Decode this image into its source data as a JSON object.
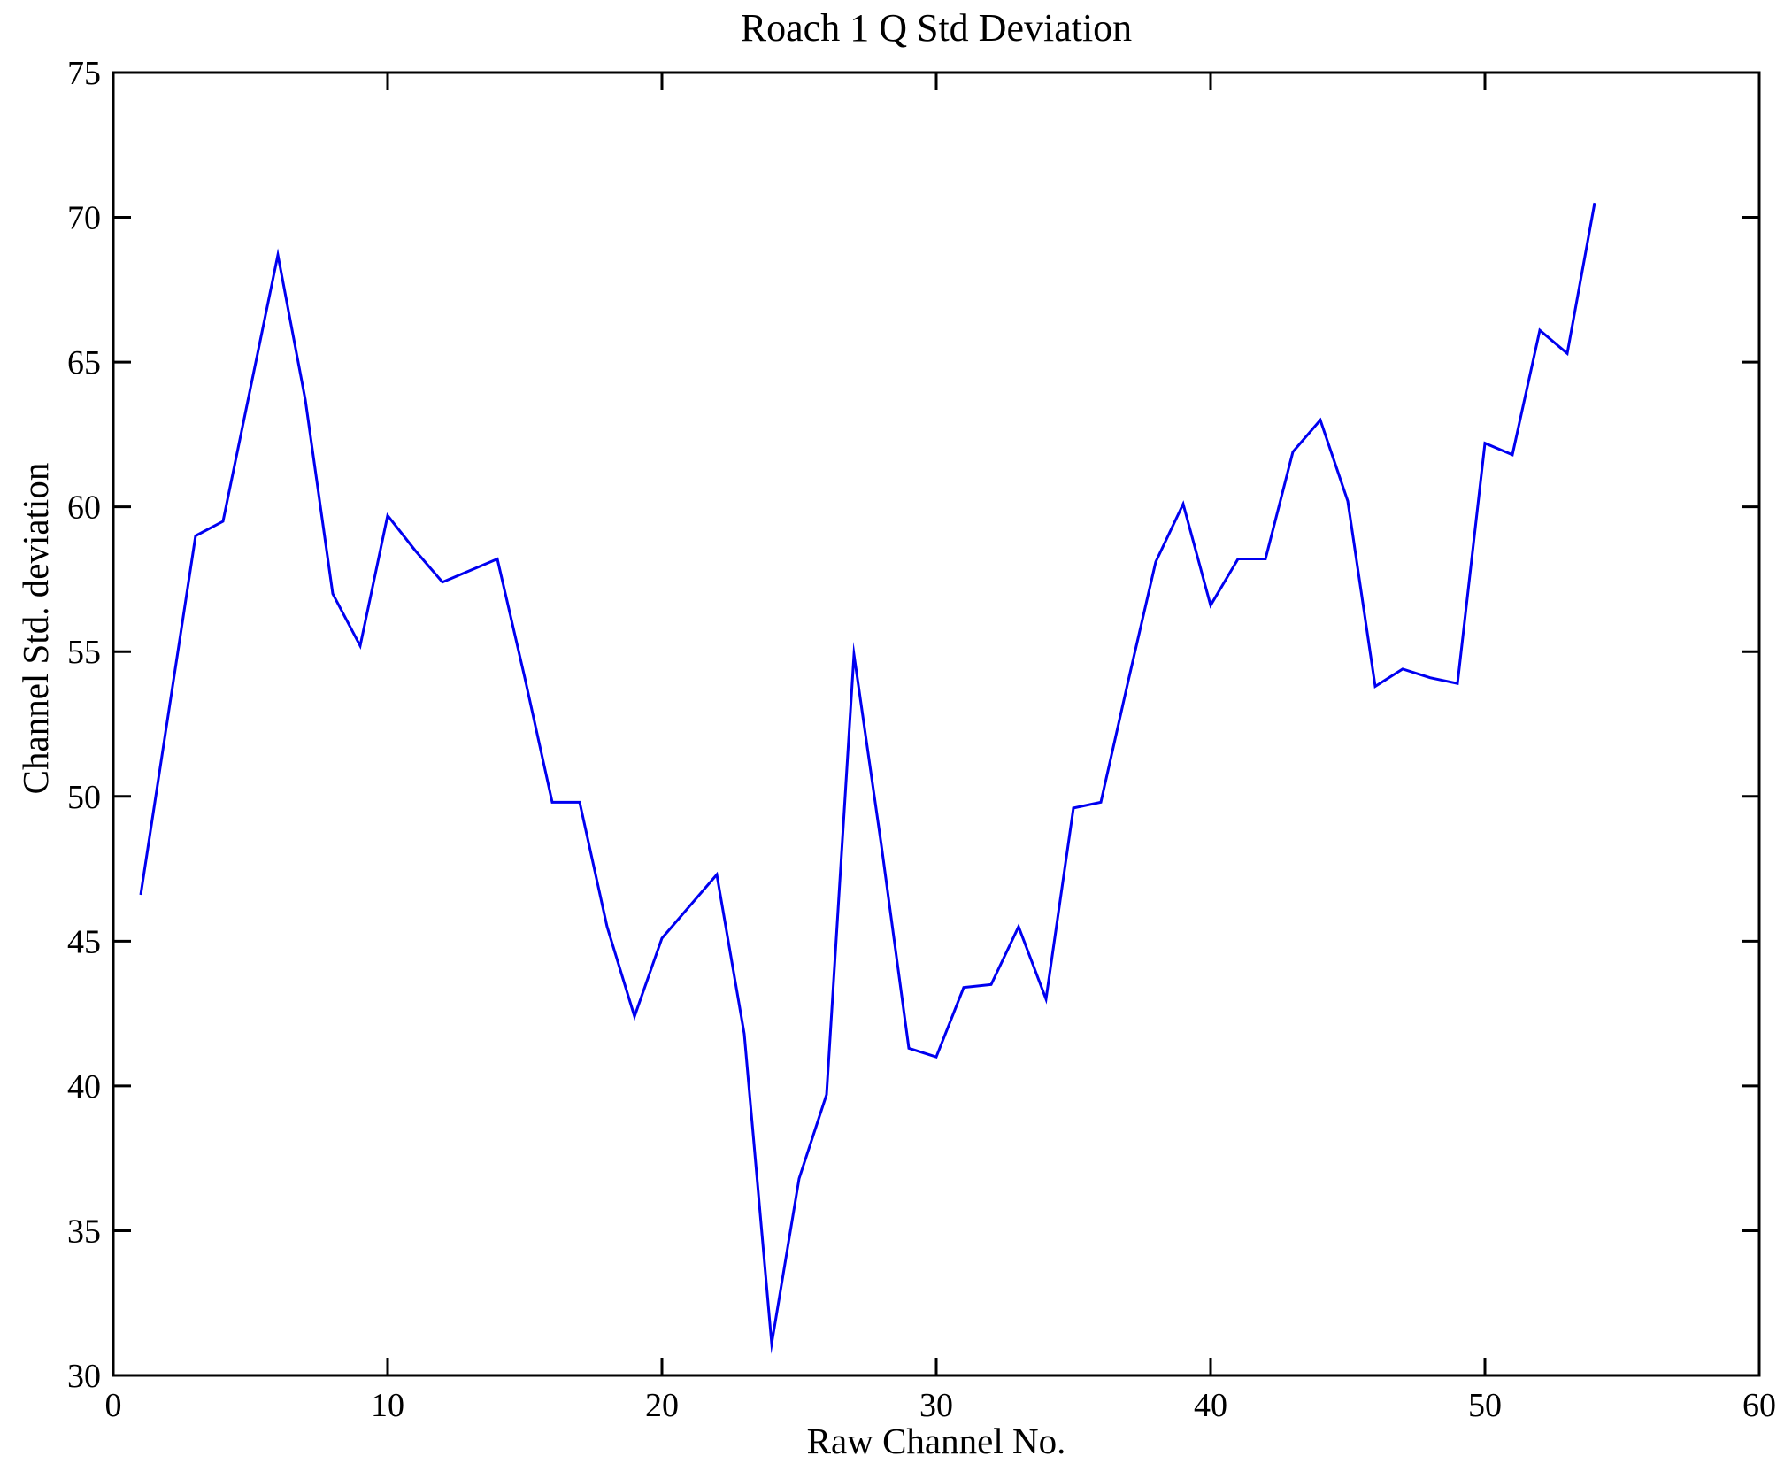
{
  "chart_data": {
    "type": "line",
    "title": "Roach 1 Q Std Deviation",
    "xlabel": "Raw Channel No.",
    "ylabel": "Channel Std. deviation",
    "xlim": [
      0,
      60
    ],
    "ylim": [
      30,
      75
    ],
    "x_ticks": [
      0,
      10,
      20,
      30,
      40,
      50,
      60
    ],
    "y_ticks": [
      30,
      35,
      40,
      45,
      50,
      55,
      60,
      65,
      70,
      75
    ],
    "grid": false,
    "legend": false,
    "line_color": "#0000f0",
    "frame_color": "#000000",
    "x": [
      1,
      2,
      3,
      4,
      5,
      6,
      7,
      8,
      9,
      10,
      11,
      12,
      13,
      14,
      15,
      16,
      17,
      18,
      19,
      20,
      21,
      22,
      23,
      24,
      25,
      26,
      27,
      28,
      29,
      30,
      31,
      32,
      33,
      34,
      35,
      36,
      37,
      38,
      39,
      40,
      41,
      42,
      43,
      44,
      45,
      46,
      47,
      48,
      49,
      50,
      51,
      52,
      53,
      54
    ],
    "values": [
      46.6,
      52.8,
      59.0,
      59.5,
      64.1,
      68.7,
      63.7,
      57.0,
      55.2,
      59.7,
      58.5,
      57.4,
      57.8,
      58.2,
      54.1,
      49.8,
      49.8,
      45.5,
      42.4,
      45.1,
      46.2,
      47.3,
      41.8,
      31.1,
      36.8,
      39.7,
      54.9,
      48.3,
      41.3,
      41.0,
      43.4,
      43.5,
      45.5,
      43.0,
      49.6,
      49.8,
      54.0,
      58.1,
      60.1,
      56.6,
      58.2,
      58.2,
      61.9,
      63.0,
      60.2,
      53.8,
      54.4,
      54.1,
      53.9,
      62.2,
      61.8,
      66.1,
      65.3,
      70.5
    ]
  }
}
